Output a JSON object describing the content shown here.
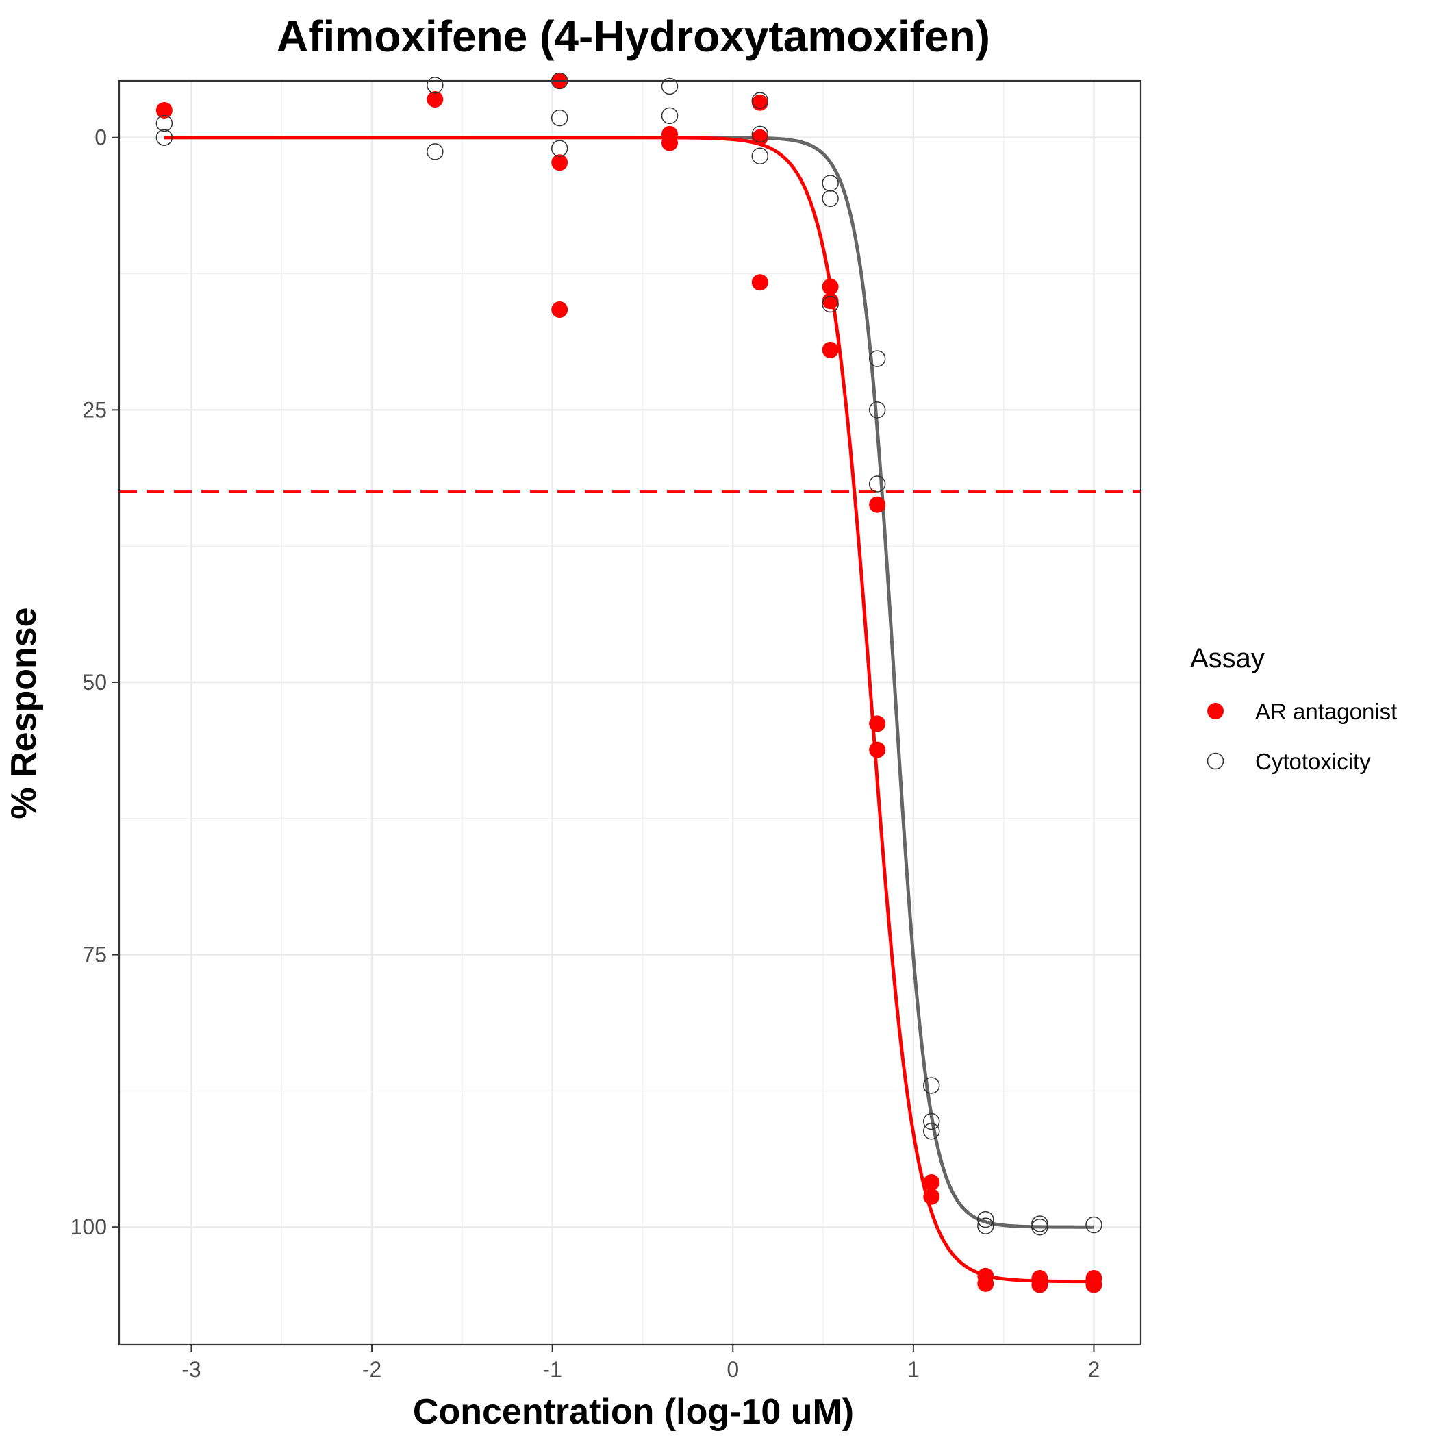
{
  "chart_data": {
    "type": "scatter",
    "title": "Afimoxifene (4-Hydroxytamoxifen)",
    "xlabel": "Concentration (log-10 uM)",
    "ylabel": "% Response",
    "xlim": [
      -3.4,
      2.26
    ],
    "ylim": [
      110.8,
      -5.2
    ],
    "y_reversed": true,
    "x_ticks": [
      -3,
      -2,
      -1,
      0,
      1,
      2
    ],
    "x_tick_labels": [
      "-3",
      "-2",
      "-1",
      "0",
      "1",
      "2"
    ],
    "y_ticks": [
      0,
      25,
      50,
      75,
      100
    ],
    "y_tick_labels": [
      "0",
      "25",
      "50",
      "75",
      "100"
    ],
    "grid": true,
    "threshold_line": {
      "y": 32.5,
      "color": "#ff0000",
      "style": "dashed"
    },
    "legend": {
      "title": "Assay",
      "position": "right",
      "entries": [
        {
          "label": "AR antagonist",
          "marker": "filled-circle",
          "color": "#ff0000"
        },
        {
          "label": "Cytotoxicity",
          "marker": "open-circle",
          "color": "#333333"
        }
      ]
    },
    "series": [
      {
        "name": "AR antagonist",
        "marker": "filled",
        "color": "#ff0000",
        "points": [
          [
            -3.15,
            -2.5
          ],
          [
            -1.65,
            -3.5
          ],
          [
            -0.96,
            -5.2
          ],
          [
            -0.96,
            2.3
          ],
          [
            -0.96,
            15.8
          ],
          [
            -0.35,
            -0.3
          ],
          [
            -0.35,
            0.5
          ],
          [
            0.15,
            -3.2
          ],
          [
            0.15,
            0.0
          ],
          [
            0.15,
            13.3
          ],
          [
            0.54,
            13.7
          ],
          [
            0.54,
            15.0
          ],
          [
            0.54,
            19.5
          ],
          [
            0.8,
            33.7
          ],
          [
            0.8,
            53.8
          ],
          [
            0.8,
            56.2
          ],
          [
            1.1,
            95.9
          ],
          [
            1.1,
            97.2
          ],
          [
            1.4,
            104.5
          ],
          [
            1.4,
            105.2
          ],
          [
            1.7,
            104.7
          ],
          [
            1.7,
            105.3
          ],
          [
            2.0,
            104.7
          ],
          [
            2.0,
            105.3
          ]
        ],
        "fit": {
          "top": 0.0,
          "bottom": 105.0,
          "logAC50": 0.77,
          "hill": 3.6
        }
      },
      {
        "name": "Cytotoxicity",
        "marker": "open",
        "color": "#333333",
        "points": [
          [
            -3.15,
            -1.3
          ],
          [
            -3.15,
            0.0
          ],
          [
            -1.65,
            -4.8
          ],
          [
            -1.65,
            1.3
          ],
          [
            -0.96,
            -5.2
          ],
          [
            -0.96,
            -1.8
          ],
          [
            -0.96,
            1.0
          ],
          [
            -0.35,
            -4.7
          ],
          [
            -0.35,
            -2.0
          ],
          [
            0.15,
            -3.4
          ],
          [
            0.15,
            -0.3
          ],
          [
            0.15,
            1.7
          ],
          [
            0.54,
            4.2
          ],
          [
            0.54,
            5.6
          ],
          [
            0.54,
            15.3
          ],
          [
            0.8,
            20.3
          ],
          [
            0.8,
            25.0
          ],
          [
            0.8,
            31.8
          ],
          [
            1.1,
            87.0
          ],
          [
            1.1,
            90.3
          ],
          [
            1.1,
            91.2
          ],
          [
            1.4,
            99.3
          ],
          [
            1.4,
            99.9
          ],
          [
            1.7,
            99.7
          ],
          [
            1.7,
            100.0
          ],
          [
            2.0,
            99.8
          ]
        ],
        "fit": {
          "top": 0.0,
          "bottom": 100.0,
          "logAC50": 0.895,
          "hill": 4.6
        }
      }
    ]
  }
}
